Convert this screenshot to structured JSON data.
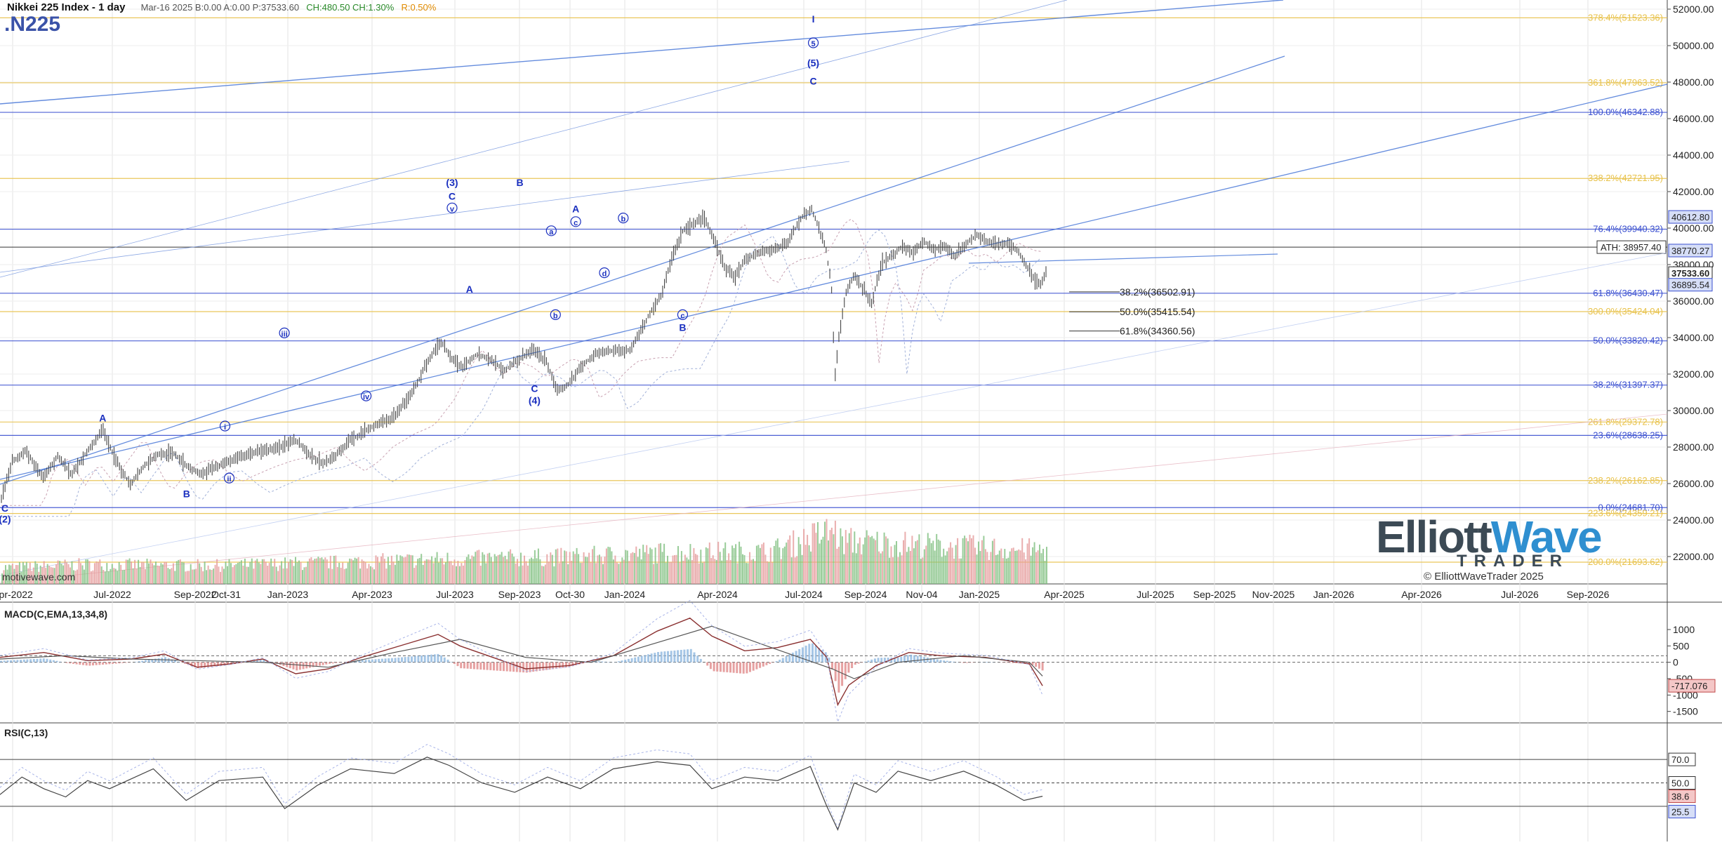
{
  "header": {
    "title": "Nikkei 225 Index - 1 day",
    "quote": "Mar-16 2025  B:0.00  A:0.00  P:37533.60",
    "change": "CH:480.50  CH:1.30%",
    "range": "R:0.50%",
    "ticker": ".N225"
  },
  "watermark": "motivewave.com",
  "logo": {
    "main": "Elliott",
    "accent": "Wave",
    "sub": "TRADER",
    "copyright": "© ElliottWaveTrader 2025"
  },
  "colors": {
    "up": "#3c8a3c",
    "down": "#c04848",
    "price": "#555555",
    "wave": "#1a2fbf",
    "fib_gold": "#e8c24a",
    "fib_blue": "#3a4fd0",
    "channel": "#4a78d8"
  },
  "chart_data": [
    {
      "type": "line",
      "title": "Nikkei 225 Index - 1 day",
      "ylim": [
        20500,
        52500
      ],
      "y_ticks": [
        "52000.00",
        "50000.00",
        "48000.00",
        "46000.00",
        "44000.00",
        "42000.00",
        "40000.00",
        "38000.00",
        "36000.00",
        "34000.00",
        "32000.00",
        "30000.00",
        "28000.00",
        "26000.00",
        "24000.00",
        "22000.00"
      ],
      "x_ticks": [
        "Apr-2022",
        "Jul-2022",
        "Sep-2022",
        "Oct-31",
        "Jan-2023",
        "Apr-2023",
        "Jul-2023",
        "Sep-2023",
        "Oct-30",
        "Jan-2024",
        "Apr-2024",
        "Jul-2024",
        "Sep-2024",
        "Nov-04",
        "Jan-2025",
        "Apr-2025",
        "Jul-2025",
        "Sep-2025",
        "Nov-2025",
        "Jan-2026",
        "Apr-2026",
        "Jul-2026",
        "Sep-2026"
      ],
      "price_path": [
        [
          0,
          25200
        ],
        [
          15,
          27200
        ],
        [
          35,
          27800
        ],
        [
          60,
          26300
        ],
        [
          80,
          27500
        ],
        [
          100,
          26500
        ],
        [
          120,
          27600
        ],
        [
          145,
          28900
        ],
        [
          160,
          27600
        ],
        [
          175,
          26500
        ],
        [
          185,
          26000
        ],
        [
          205,
          27000
        ],
        [
          225,
          27600
        ],
        [
          245,
          27700
        ],
        [
          265,
          27000
        ],
        [
          285,
          26500
        ],
        [
          300,
          26800
        ],
        [
          330,
          27300
        ],
        [
          360,
          27700
        ],
        [
          390,
          27900
        ],
        [
          420,
          28400
        ],
        [
          440,
          27600
        ],
        [
          460,
          27100
        ],
        [
          480,
          27600
        ],
        [
          500,
          28400
        ],
        [
          530,
          29100
        ],
        [
          560,
          29600
        ],
        [
          590,
          31100
        ],
        [
          610,
          32700
        ],
        [
          620,
          33300
        ],
        [
          630,
          33800
        ],
        [
          645,
          32800
        ],
        [
          660,
          32400
        ],
        [
          680,
          33100
        ],
        [
          700,
          32800
        ],
        [
          720,
          32200
        ],
        [
          740,
          32800
        ],
        [
          760,
          33300
        ],
        [
          780,
          32700
        ],
        [
          795,
          31100
        ],
        [
          810,
          31400
        ],
        [
          830,
          32400
        ],
        [
          850,
          33100
        ],
        [
          880,
          33300
        ],
        [
          900,
          33300
        ],
        [
          925,
          35100
        ],
        [
          945,
          36400
        ],
        [
          960,
          38400
        ],
        [
          975,
          39800
        ],
        [
          990,
          40200
        ],
        [
          1005,
          40600
        ],
        [
          1020,
          39400
        ],
        [
          1035,
          37900
        ],
        [
          1050,
          37300
        ],
        [
          1065,
          38300
        ],
        [
          1085,
          38700
        ],
        [
          1105,
          38800
        ],
        [
          1125,
          39200
        ],
        [
          1145,
          40600
        ],
        [
          1160,
          41000
        ],
        [
          1170,
          40000
        ],
        [
          1180,
          38900
        ],
        [
          1188,
          36800
        ],
        [
          1193,
          31800
        ],
        [
          1198,
          33800
        ],
        [
          1208,
          36400
        ],
        [
          1220,
          37400
        ],
        [
          1235,
          36600
        ],
        [
          1245,
          35800
        ],
        [
          1260,
          38100
        ],
        [
          1275,
          38500
        ],
        [
          1290,
          39000
        ],
        [
          1305,
          38600
        ],
        [
          1320,
          39300
        ],
        [
          1335,
          38800
        ],
        [
          1350,
          39000
        ],
        [
          1365,
          38500
        ],
        [
          1380,
          39100
        ],
        [
          1395,
          39600
        ],
        [
          1410,
          39300
        ],
        [
          1425,
          39100
        ],
        [
          1440,
          39200
        ],
        [
          1455,
          38700
        ],
        [
          1470,
          37800
        ],
        [
          1480,
          37000
        ],
        [
          1488,
          36900
        ],
        [
          1495,
          37533.6
        ]
      ],
      "volume_path": [
        [
          0,
          0.3
        ],
        [
          120,
          0.36
        ],
        [
          300,
          0.34
        ],
        [
          480,
          0.4
        ],
        [
          640,
          0.46
        ],
        [
          800,
          0.5
        ],
        [
          950,
          0.58
        ],
        [
          1100,
          0.6
        ],
        [
          1190,
          1.0
        ],
        [
          1200,
          0.8
        ],
        [
          1350,
          0.7
        ],
        [
          1495,
          0.62
        ]
      ],
      "fib_levels_right": [
        {
          "label": "378.4%(51523.36)",
          "value": 51523.36,
          "color": "#e8c24a"
        },
        {
          "label": "361.8%(47963.52)",
          "value": 47963.52,
          "color": "#e8c24a"
        },
        {
          "label": "100.0%(46342.88)",
          "value": 46342.88,
          "color": "#3a4fd0"
        },
        {
          "label": "338.2%(42721.95)",
          "value": 42721.95,
          "color": "#e8c24a"
        },
        {
          "label": "76.4%(39940.32)",
          "value": 39940.32,
          "color": "#3a4fd0"
        },
        {
          "label": "61.8%(36430.47)",
          "value": 36430.47,
          "color": "#3a4fd0"
        },
        {
          "label": "300.0%(35424.04)",
          "value": 35424.04,
          "color": "#e8c24a"
        },
        {
          "label": "50.0%(33820.42)",
          "value": 33820.42,
          "color": "#3a4fd0"
        },
        {
          "label": "38.2%(31397.37)",
          "value": 31397.37,
          "color": "#3a4fd0"
        },
        {
          "label": "261.8%(29372.78)",
          "value": 29372.78,
          "color": "#e8c24a"
        },
        {
          "label": "23.6%(28638.25)",
          "value": 28638.25,
          "color": "#3a4fd0"
        },
        {
          "label": "238.2%(26162.85)",
          "value": 26162.85,
          "color": "#e8c24a"
        },
        {
          "label": "0.0%(24681.70)",
          "value": 24681.7,
          "color": "#3a4fd0"
        },
        {
          "label": "223.6%(24359.21)",
          "value": 24359.21,
          "color": "#e8c24a"
        },
        {
          "label": "200.0%(21693.62)",
          "value": 21693.62,
          "color": "#e8c24a"
        }
      ],
      "fib_levels_mid": [
        {
          "label": "38.2%(36502.91)",
          "value": 36502.91
        },
        {
          "label": "50.0%(35415.54)",
          "value": 35415.54
        },
        {
          "label": "61.8%(34360.56)",
          "value": 34360.56
        }
      ],
      "price_badges": [
        {
          "label": "40612.80",
          "value": 40612.8,
          "style": "blue"
        },
        {
          "label": "38770.27",
          "value": 38770.27,
          "style": "blue"
        },
        {
          "label": "37533.60",
          "value": 37533.6,
          "style": "dark"
        },
        {
          "label": "36895.54",
          "value": 36895.54,
          "style": "blue"
        }
      ],
      "ath": {
        "label": "ATH: 38957.40",
        "value": 38957.4
      },
      "wave_labels": [
        {
          "text": "C",
          "x": 5,
          "y": 24500
        },
        {
          "text": "(2)",
          "x": 5,
          "y": 23900
        },
        {
          "text": "A",
          "x": 145,
          "y": 29450
        },
        {
          "text": "B",
          "x": 265,
          "y": 25280
        },
        {
          "text": "i",
          "x": 320,
          "y": 29000,
          "circle": true
        },
        {
          "text": "ii",
          "x": 326,
          "y": 26150,
          "circle": true
        },
        {
          "text": "iii",
          "x": 405,
          "y": 34100,
          "circle": true
        },
        {
          "text": "iv",
          "x": 522,
          "y": 30650,
          "circle": true
        },
        {
          "text": "(3)",
          "x": 645,
          "y": 42350
        },
        {
          "text": "C",
          "x": 645,
          "y": 41600
        },
        {
          "text": "v",
          "x": 645,
          "y": 40950,
          "circle": true
        },
        {
          "text": "A",
          "x": 670,
          "y": 36500
        },
        {
          "text": "B",
          "x": 742,
          "y": 42350
        },
        {
          "text": "C",
          "x": 763,
          "y": 31050
        },
        {
          "text": "(4)",
          "x": 763,
          "y": 30400
        },
        {
          "text": "a",
          "x": 787,
          "y": 39700,
          "circle": true
        },
        {
          "text": "b",
          "x": 793,
          "y": 35100,
          "circle": true
        },
        {
          "text": "A",
          "x": 822,
          "y": 40900
        },
        {
          "text": "c",
          "x": 822,
          "y": 40200,
          "circle": true
        },
        {
          "text": "b",
          "x": 890,
          "y": 40400,
          "circle": true
        },
        {
          "text": "d",
          "x": 863,
          "y": 37400,
          "circle": true
        },
        {
          "text": "c",
          "x": 975,
          "y": 35100,
          "circle": true
        },
        {
          "text": "B",
          "x": 975,
          "y": 34400
        },
        {
          "text": "I",
          "x": 1162,
          "y": 51300
        },
        {
          "text": "5",
          "x": 1162,
          "y": 50000,
          "circle": true
        },
        {
          "text": "(5)",
          "x": 1162,
          "y": 48900
        },
        {
          "text": "C",
          "x": 1162,
          "y": 47900
        }
      ]
    },
    {
      "type": "line",
      "title": "MACD(C,EMA,13,34,8)",
      "ylim": [
        -1850,
        1750
      ],
      "y_ticks": [
        "1000",
        "500",
        "0",
        "-500",
        "-1000",
        "-1500"
      ],
      "value_label": "-717.076",
      "value": -717.076,
      "macd_path": [
        [
          0,
          150
        ],
        [
          40,
          300
        ],
        [
          80,
          50
        ],
        [
          120,
          100
        ],
        [
          150,
          250
        ],
        [
          180,
          -150
        ],
        [
          210,
          -50
        ],
        [
          240,
          100
        ],
        [
          270,
          -350
        ],
        [
          300,
          -200
        ],
        [
          330,
          150
        ],
        [
          370,
          550
        ],
        [
          400,
          850
        ],
        [
          420,
          500
        ],
        [
          450,
          150
        ],
        [
          480,
          -200
        ],
        [
          520,
          -100
        ],
        [
          560,
          200
        ],
        [
          600,
          950
        ],
        [
          630,
          1350
        ],
        [
          650,
          800
        ],
        [
          680,
          350
        ],
        [
          710,
          450
        ],
        [
          740,
          700
        ],
        [
          755,
          150
        ],
        [
          765,
          -1300
        ],
        [
          775,
          -700
        ],
        [
          800,
          -100
        ],
        [
          830,
          300
        ],
        [
          860,
          200
        ],
        [
          900,
          150
        ],
        [
          940,
          -50
        ],
        [
          952,
          -717
        ]
      ],
      "signal_path": [
        [
          0,
          100
        ],
        [
          60,
          200
        ],
        [
          120,
          100
        ],
        [
          180,
          50
        ],
        [
          240,
          0
        ],
        [
          300,
          -150
        ],
        [
          360,
          300
        ],
        [
          420,
          700
        ],
        [
          480,
          150
        ],
        [
          540,
          0
        ],
        [
          600,
          600
        ],
        [
          650,
          1100
        ],
        [
          700,
          500
        ],
        [
          760,
          -200
        ],
        [
          780,
          -500
        ],
        [
          820,
          0
        ],
        [
          880,
          200
        ],
        [
          940,
          0
        ],
        [
          952,
          -420
        ]
      ]
    },
    {
      "type": "line",
      "title": "RSI(C,13)",
      "ylim": [
        0,
        100
      ],
      "y_ticks": [
        "70.0",
        "50.0"
      ],
      "value_labels": [
        {
          "label": "38.6",
          "value": 38.6,
          "style": "red"
        },
        {
          "label": "25.5",
          "value": 25.5,
          "style": "blue"
        }
      ],
      "rsi_path": [
        [
          0,
          40
        ],
        [
          20,
          55
        ],
        [
          40,
          45
        ],
        [
          60,
          38
        ],
        [
          80,
          52
        ],
        [
          100,
          45
        ],
        [
          140,
          62
        ],
        [
          170,
          35
        ],
        [
          200,
          52
        ],
        [
          240,
          55
        ],
        [
          260,
          28
        ],
        [
          290,
          48
        ],
        [
          320,
          62
        ],
        [
          360,
          58
        ],
        [
          390,
          72
        ],
        [
          410,
          65
        ],
        [
          440,
          50
        ],
        [
          470,
          42
        ],
        [
          500,
          55
        ],
        [
          530,
          45
        ],
        [
          560,
          62
        ],
        [
          600,
          68
        ],
        [
          630,
          65
        ],
        [
          650,
          45
        ],
        [
          680,
          55
        ],
        [
          710,
          52
        ],
        [
          740,
          64
        ],
        [
          755,
          30
        ],
        [
          765,
          10
        ],
        [
          780,
          50
        ],
        [
          800,
          42
        ],
        [
          820,
          60
        ],
        [
          850,
          52
        ],
        [
          880,
          60
        ],
        [
          910,
          48
        ],
        [
          935,
          35
        ],
        [
          952,
          38.6
        ]
      ]
    }
  ]
}
